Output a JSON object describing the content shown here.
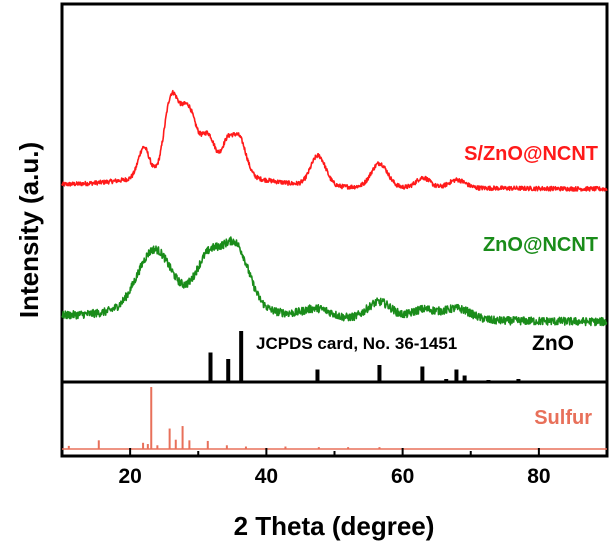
{
  "chart_data": {
    "type": "line",
    "title": "",
    "xlabel": "2 Theta (degree)",
    "ylabel": "Intensity (a.u.)",
    "xlim": [
      10,
      90
    ],
    "x_ticks": [
      20,
      40,
      60,
      80
    ],
    "y_ticks": [],
    "grid": false,
    "series": [
      {
        "name": "S/ZnO@NCNT",
        "label": "S/ZnO@NCNT",
        "color": "#ff1a1a",
        "baseline": 0,
        "noise": 2.2,
        "peaks": [
          {
            "x": 22.0,
            "h": 30,
            "w": 0.8
          },
          {
            "x": 26.0,
            "h": 72,
            "w": 1.0
          },
          {
            "x": 28.5,
            "h": 64,
            "w": 1.2
          },
          {
            "x": 31.5,
            "h": 36,
            "w": 1.0
          },
          {
            "x": 34.2,
            "h": 28,
            "w": 0.8
          },
          {
            "x": 36.0,
            "h": 38,
            "w": 1.0
          },
          {
            "x": 47.6,
            "h": 30,
            "w": 1.1
          },
          {
            "x": 56.6,
            "h": 24,
            "w": 1.2
          },
          {
            "x": 63.0,
            "h": 10,
            "w": 1.0
          },
          {
            "x": 68.0,
            "h": 8,
            "w": 1.2
          }
        ],
        "hump": {
          "x": 30,
          "h": 14,
          "w": 8
        }
      },
      {
        "name": "ZnO@NCNT",
        "label": "ZnO@NCNT",
        "color": "#1a8c1a",
        "baseline": 0,
        "noise": 2.8,
        "peaks": [
          {
            "x": 23.5,
            "h": 38,
            "w": 2.4
          },
          {
            "x": 31.5,
            "h": 30,
            "w": 1.8
          },
          {
            "x": 35.5,
            "h": 40,
            "w": 1.9
          },
          {
            "x": 47.5,
            "h": 6,
            "w": 2.0
          },
          {
            "x": 56.6,
            "h": 12,
            "w": 1.8
          },
          {
            "x": 63.0,
            "h": 7,
            "w": 1.8
          },
          {
            "x": 68.0,
            "h": 8,
            "w": 2.0
          }
        ],
        "hump": {
          "x": 30,
          "h": 12,
          "w": 8
        }
      },
      {
        "name": "JCPDS card, No. 36-1451",
        "label": "ZnO",
        "color": "#000000",
        "type": "stick",
        "x": [
          31.8,
          34.4,
          36.3,
          47.5,
          56.6,
          62.9,
          66.4,
          67.9,
          69.1,
          72.6,
          77.0
        ],
        "values": [
          57,
          44,
          100,
          23,
          32,
          29,
          4,
          23,
          11,
          2,
          4
        ]
      },
      {
        "name": "Sulfur",
        "label": "Sulfur",
        "color": "#e8705a",
        "type": "stick",
        "x": [
          11.0,
          15.4,
          21.9,
          22.6,
          23.1,
          24.0,
          25.8,
          26.7,
          27.7,
          28.7,
          31.4,
          34.2,
          37.0,
          42.8,
          47.7,
          52.0,
          56.6
        ],
        "values": [
          5,
          14,
          10,
          8,
          100,
          6,
          33,
          15,
          37,
          14,
          13,
          6,
          4,
          4,
          3,
          3,
          3
        ]
      }
    ],
    "annotations": {
      "jcpds": "JCPDS card, No. 36-1451",
      "zno": "ZnO"
    }
  }
}
